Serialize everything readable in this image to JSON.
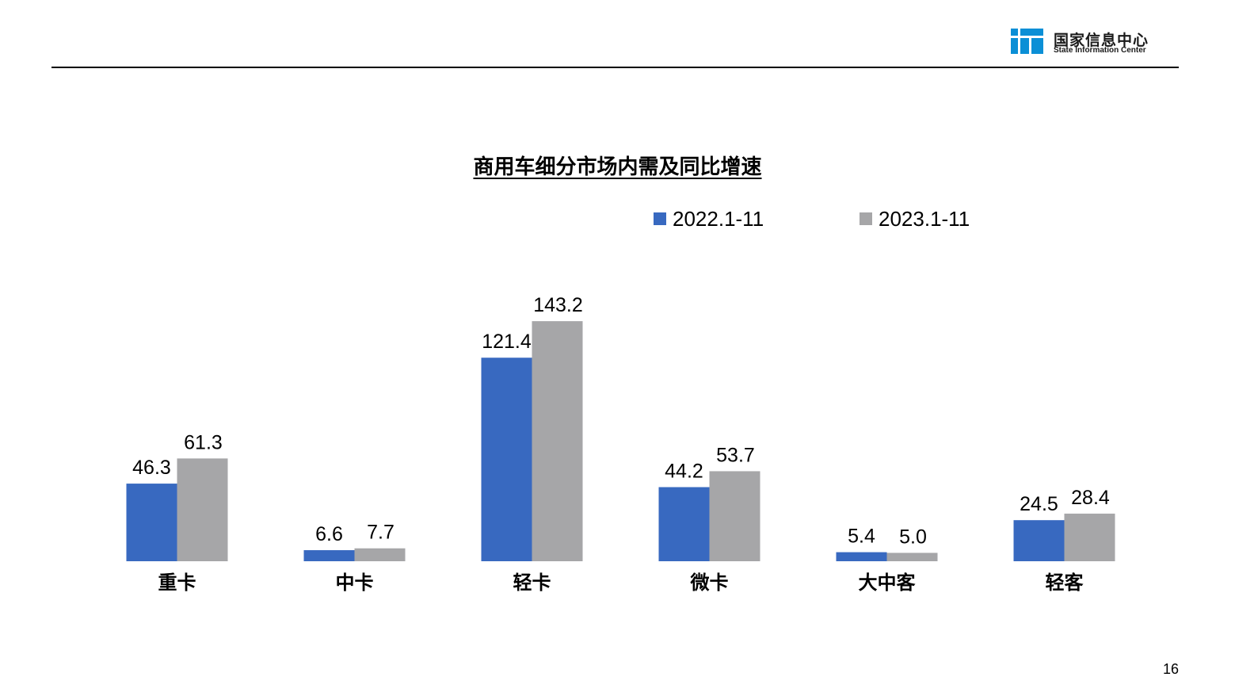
{
  "logo": {
    "name_cn": "国家信息中心",
    "name_en": "State Information Center",
    "brand_color": "#0b8fd6"
  },
  "chart_data": {
    "type": "bar",
    "title": "商用车细分市场内需及同比增速",
    "xlabel": "",
    "ylabel": "",
    "ylim": [
      0,
      160
    ],
    "grid": false,
    "legend_position": "top",
    "categories": [
      "重卡",
      "中卡",
      "轻卡",
      "微卡",
      "大中客",
      "轻客"
    ],
    "series": [
      {
        "name": "2022.1-11",
        "color": "#3869c0",
        "values": [
          46.3,
          6.6,
          121.4,
          44.2,
          5.4,
          24.5
        ],
        "labels": [
          "46.3",
          "6.6",
          "121.4",
          "44.2",
          "5.4",
          "24.5"
        ]
      },
      {
        "name": "2023.1-11",
        "color": "#a6a6a8",
        "values": [
          61.3,
          7.7,
          143.2,
          53.7,
          5.0,
          28.4
        ],
        "labels": [
          "61.3",
          "7.7",
          "143.2",
          "53.7",
          "5.0",
          "28.4"
        ]
      }
    ]
  },
  "page_number": "16"
}
